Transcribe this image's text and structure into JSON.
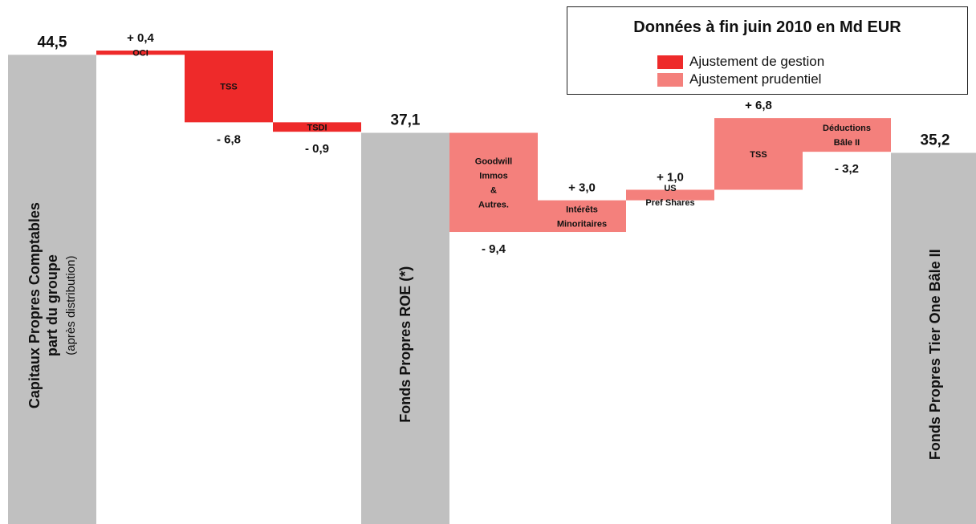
{
  "chart_data": {
    "type": "bar",
    "subtype": "waterfall",
    "title": "Données à fin juin 2010 en Md EUR",
    "units": "Md EUR",
    "colors": {
      "total": "#c0c0c0",
      "gestion": "#ee2a2a",
      "prudentiel": "#f4807c"
    },
    "legend": [
      {
        "label": "Ajustement de gestion",
        "color": "#ee2a2a"
      },
      {
        "label": "Ajustement prudentiel",
        "color": "#f4807c"
      }
    ],
    "steps": [
      {
        "kind": "total",
        "value": 44.5,
        "display": "44,5",
        "rot_label": [
          "Capitaux Propres Comptables",
          "part du groupe",
          "(après distribution)"
        ]
      },
      {
        "kind": "gestion",
        "delta": 0.4,
        "display": "+ 0,4",
        "label": [
          "OCI"
        ]
      },
      {
        "kind": "gestion",
        "delta": -6.8,
        "display": "- 6,8",
        "label": [
          "TSS"
        ]
      },
      {
        "kind": "gestion",
        "delta": -0.9,
        "display": "- 0,9",
        "label": [
          "TSDI"
        ]
      },
      {
        "kind": "total",
        "value": 37.1,
        "display": "37,1",
        "rot_label": [
          "Fonds Propres ROE (*)"
        ]
      },
      {
        "kind": "prudentiel",
        "delta": -9.4,
        "display": "- 9,4",
        "label": [
          "Goodwill",
          "Immos",
          "&",
          "Autres."
        ]
      },
      {
        "kind": "prudentiel",
        "delta": 3.0,
        "display": "+ 3,0",
        "label": [
          "Intérêts",
          "Minoritaires"
        ]
      },
      {
        "kind": "prudentiel",
        "delta": 1.0,
        "display": "+ 1,0",
        "label": [
          "US",
          "Pref Shares"
        ]
      },
      {
        "kind": "prudentiel",
        "delta": 6.8,
        "display": "+ 6,8",
        "label": [
          "TSS"
        ]
      },
      {
        "kind": "prudentiel",
        "delta": -3.2,
        "display": "- 3,2",
        "label": [
          "Déductions",
          "Bâle II"
        ]
      },
      {
        "kind": "total",
        "value": 35.2,
        "display": "35,2",
        "rot_label": [
          "Fonds Propres Tier One Bâle II"
        ]
      }
    ]
  }
}
